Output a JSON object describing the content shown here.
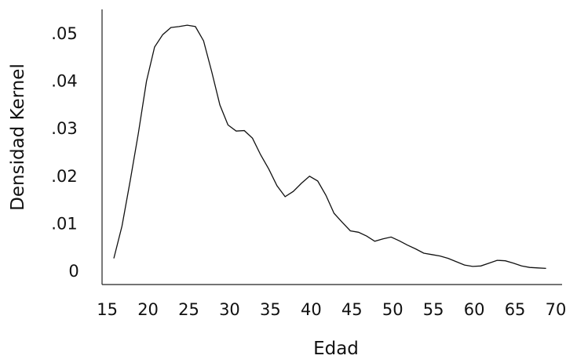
{
  "chart_data": {
    "type": "line",
    "xlabel": "Edad",
    "ylabel": "Densidad Kernel",
    "xlim": [
      15,
      71
    ],
    "ylim": [
      0,
      0.055
    ],
    "grid": false,
    "legend": "none",
    "x_ticks": [
      {
        "value": 15,
        "label": "15"
      },
      {
        "value": 20,
        "label": "20"
      },
      {
        "value": 25,
        "label": "25"
      },
      {
        "value": 30,
        "label": "30"
      },
      {
        "value": 35,
        "label": "35"
      },
      {
        "value": 40,
        "label": "40"
      },
      {
        "value": 45,
        "label": "45"
      },
      {
        "value": 50,
        "label": "50"
      },
      {
        "value": 55,
        "label": "55"
      },
      {
        "value": 60,
        "label": "60"
      },
      {
        "value": 65,
        "label": "65"
      },
      {
        "value": 70,
        "label": "70"
      }
    ],
    "y_ticks": [
      {
        "value": 0,
        "label": "0"
      },
      {
        "value": 0.01,
        "label": ".01"
      },
      {
        "value": 0.02,
        "label": ".02"
      },
      {
        "value": 0.03,
        "label": ".03"
      },
      {
        "value": 0.04,
        "label": ".04"
      },
      {
        "value": 0.05,
        "label": ".05"
      }
    ],
    "series": [
      {
        "color": "#111111",
        "x": [
          16,
          17,
          18,
          19,
          20,
          21,
          22,
          23,
          24,
          25,
          26,
          27,
          28,
          29,
          30,
          31,
          32,
          33,
          34,
          35,
          36,
          37,
          38,
          39,
          40,
          41,
          42,
          43,
          44,
          45,
          46,
          47,
          48,
          49,
          50,
          51,
          52,
          53,
          54,
          55,
          56,
          57,
          58,
          59,
          60,
          61,
          62,
          63,
          64,
          65,
          66,
          67,
          68,
          69
        ],
        "y": [
          0.0027,
          0.0095,
          0.019,
          0.029,
          0.04,
          0.0472,
          0.0498,
          0.0513,
          0.0515,
          0.0518,
          0.0515,
          0.0485,
          0.042,
          0.035,
          0.0308,
          0.0295,
          0.0296,
          0.028,
          0.0245,
          0.0215,
          0.018,
          0.0157,
          0.0168,
          0.0185,
          0.02,
          0.019,
          0.016,
          0.0122,
          0.0103,
          0.0085,
          0.0082,
          0.0074,
          0.0063,
          0.0068,
          0.0072,
          0.0064,
          0.0055,
          0.0047,
          0.0038,
          0.0035,
          0.0032,
          0.0027,
          0.002,
          0.0013,
          0.001,
          0.0011,
          0.0017,
          0.0023,
          0.0022,
          0.0017,
          0.0011,
          0.0008,
          0.0007,
          0.0006
        ]
      }
    ]
  }
}
